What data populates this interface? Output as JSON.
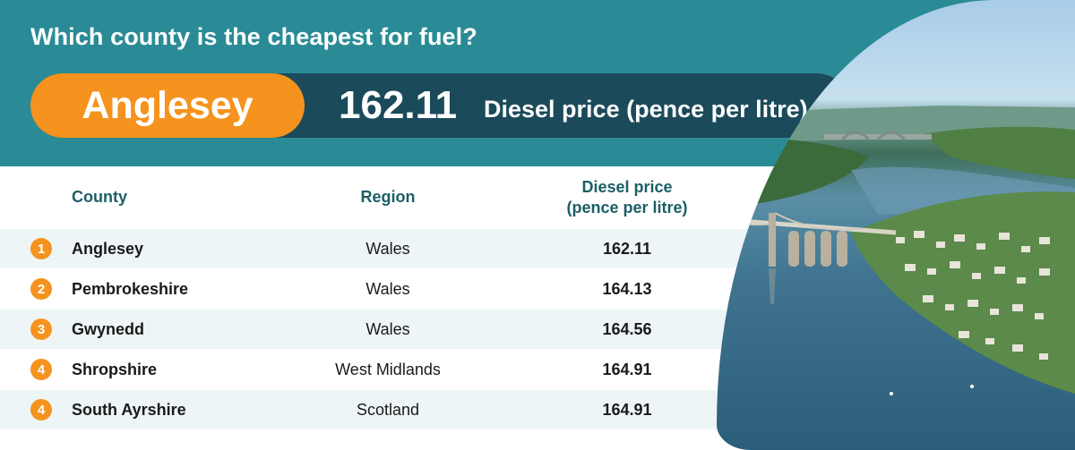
{
  "header": {
    "question": "Which county is the cheapest for fuel?",
    "featured_county": "Anglesey",
    "featured_price": "162.11",
    "featured_price_label": "Diesel price (pence per litre)"
  },
  "table": {
    "columns": {
      "county": "County",
      "region": "Region",
      "price_line1": "Diesel price",
      "price_line2": "(pence per litre)"
    },
    "rows": [
      {
        "rank": "1",
        "county": "Anglesey",
        "region": "Wales",
        "price": "162.11"
      },
      {
        "rank": "2",
        "county": "Pembrokeshire",
        "region": "Wales",
        "price": "164.13"
      },
      {
        "rank": "3",
        "county": "Gwynedd",
        "region": "Wales",
        "price": "164.56"
      },
      {
        "rank": "4",
        "county": "Shropshire",
        "region": "West Midlands",
        "price": "164.91"
      },
      {
        "rank": "4",
        "county": "South Ayrshire",
        "region": "Scotland",
        "price": "164.91"
      }
    ]
  },
  "colors": {
    "teal": "#2a8b96",
    "navy": "#1b4a5a",
    "orange": "#f5931e",
    "row_shade": "#eef5f7"
  },
  "photo": {
    "icon": "aerial-photo-menai-bridge"
  }
}
